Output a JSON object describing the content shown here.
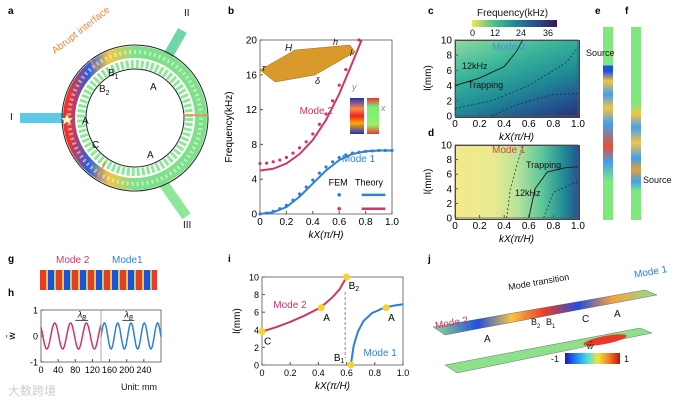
{
  "panels": {
    "a": "a",
    "b": "b",
    "c": "c",
    "d": "d",
    "e": "e",
    "f": "f",
    "g": "g",
    "h": "h",
    "i": "i",
    "j": "j"
  },
  "panel_a": {
    "interface_label": "Abrupt interface",
    "ports": [
      "I",
      "II",
      "III"
    ],
    "regions": [
      "A",
      "A",
      "A",
      "C"
    ],
    "b1": "B",
    "b1_sub": "1",
    "b2": "B",
    "b2_sub": "2"
  },
  "panel_c": {
    "colorbar_title": "Frequency(kHz)",
    "colorbar_ticks": [
      "0",
      "12",
      "24",
      "36"
    ],
    "mode_label": "Mode 2",
    "contour_label": "12kHz",
    "trapping_label": "Trapping"
  },
  "panel_d": {
    "mode_label": "Mode 1",
    "contour_label": "12kHz",
    "trapping_label": "Trapping"
  },
  "panel_e": {
    "source_label": "Source"
  },
  "panel_f": {
    "source_label": "Source"
  },
  "panel_g": {
    "mode2": "Mode 2",
    "mode1": "Mode1"
  },
  "panel_j": {
    "mode2": "Mode 2",
    "mode1": "Mode 1",
    "transition": "Mode transition",
    "a1": "A",
    "a2": "A",
    "c": "C",
    "b2": "B",
    "b2_sub": "2",
    "b1": "B",
    "b1_sub": "1",
    "colorbar_label": "w̄",
    "cb_min": "-1",
    "cb_max": "1"
  },
  "watermark": "大数跨境",
  "colors": {
    "mode1": "#2f7fd8",
    "mode2": "#d0356a",
    "highlight": "#f5d327",
    "interface": "#f08a3c"
  },
  "chart_data": [
    {
      "id": "b",
      "type": "line",
      "xlabel": "kX(π/H)",
      "ylabel": "Frequency(kHz)",
      "xlim": [
        0,
        1
      ],
      "ylim": [
        0,
        20
      ],
      "xticks": [
        "0",
        "0.2",
        "0.4",
        "0.6",
        "0.8",
        "1.0"
      ],
      "yticks": [
        "0",
        "4",
        "8",
        "12",
        "16",
        "20"
      ],
      "legend": {
        "fem": "FEM",
        "theory": "Theory",
        "placement": "bottom-right"
      },
      "labels": {
        "mode1": "Mode 1",
        "mode2": "Mode 2",
        "H": "H",
        "h": "h",
        "l": "l",
        "tau": "τ",
        "delta": "δ",
        "x": "x",
        "y": "y"
      },
      "series": [
        {
          "name": "Mode 2 Theory",
          "kind": "line",
          "x": [
            0,
            0.1,
            0.2,
            0.3,
            0.4,
            0.5,
            0.6,
            0.7,
            0.77
          ],
          "y": [
            5,
            5.2,
            5.8,
            6.9,
            8.5,
            10.8,
            13.8,
            17.4,
            20
          ]
        },
        {
          "name": "Mode 2 FEM",
          "kind": "points",
          "x": [
            0,
            0.05,
            0.1,
            0.15,
            0.2,
            0.25,
            0.3,
            0.35,
            0.4,
            0.45,
            0.5,
            0.55,
            0.6,
            0.65,
            0.7,
            0.75
          ],
          "y": [
            5.8,
            5.85,
            6,
            6.2,
            6.5,
            7,
            7.6,
            8.3,
            9.2,
            10.3,
            11.5,
            13,
            14.8,
            16.6,
            18.5,
            20
          ]
        },
        {
          "name": "Mode 1 Theory",
          "kind": "line",
          "x": [
            0,
            0.1,
            0.2,
            0.3,
            0.4,
            0.5,
            0.6,
            0.7,
            0.8,
            0.9,
            1.0
          ],
          "y": [
            0,
            0.2,
            0.8,
            2,
            3.5,
            5,
            6.2,
            6.9,
            7.2,
            7.3,
            7.3
          ]
        },
        {
          "name": "Mode 1 FEM",
          "kind": "points",
          "x": [
            0,
            0.05,
            0.1,
            0.15,
            0.2,
            0.25,
            0.3,
            0.35,
            0.4,
            0.45,
            0.5,
            0.55,
            0.6,
            0.65,
            0.7,
            0.75,
            0.8,
            0.85,
            0.9,
            0.95,
            1.0
          ],
          "y": [
            0,
            0.1,
            0.3,
            0.6,
            1,
            1.6,
            2.3,
            3.1,
            3.9,
            4.7,
            5.4,
            6,
            6.5,
            6.8,
            7,
            7.1,
            7.2,
            7.25,
            7.3,
            7.3,
            7.3
          ]
        }
      ]
    },
    {
      "id": "c",
      "type": "heatmap",
      "xlabel": "kX(π/H)",
      "ylabel": "l(mm)",
      "xlim": [
        0,
        1
      ],
      "ylim": [
        0,
        10
      ],
      "xticks": [
        "0",
        "0.2",
        "0.4",
        "0.6",
        "0.8",
        "1.0"
      ],
      "yticks": [
        "0",
        "2",
        "4",
        "6",
        "8",
        "10"
      ],
      "colorbar_range_khz": [
        0,
        36
      ]
    },
    {
      "id": "d",
      "type": "heatmap",
      "xlabel": "kX(π/H)",
      "ylabel": "l(mm)",
      "xlim": [
        0,
        1
      ],
      "ylim": [
        0,
        10
      ],
      "xticks": [
        "0",
        "0.2",
        "0.4",
        "0.6",
        "0.8",
        "1.0"
      ],
      "yticks": [
        "0",
        "2",
        "4",
        "6",
        "8",
        "10"
      ],
      "colorbar_range_khz": [
        0,
        36
      ]
    },
    {
      "id": "h",
      "type": "line",
      "xlabel": "",
      "ylabel": "w̄",
      "unit_label": "Unit: mm",
      "xlim": [
        0,
        280
      ],
      "ylim": [
        -1,
        1
      ],
      "xticks": [
        "0",
        "40",
        "80",
        "120",
        "160",
        "200",
        "240"
      ],
      "yticks": [
        "-1",
        "0",
        "1"
      ],
      "lambda_label": "λ",
      "lambda_sub": "B",
      "series": [
        {
          "name": "Mode 2",
          "x_range": [
            0,
            140
          ],
          "amplitude": 0.5,
          "period_mm": 37
        },
        {
          "name": "Mode 1",
          "x_range": [
            140,
            280
          ],
          "amplitude": 0.5,
          "period_mm": 31
        }
      ]
    },
    {
      "id": "i",
      "type": "line",
      "xlabel": "kX(π/H)",
      "ylabel": "l(mm)",
      "xlim": [
        0,
        1
      ],
      "ylim": [
        0,
        10
      ],
      "xticks": [
        "0",
        "0.2",
        "0.4",
        "0.6",
        "0.8",
        "1.0"
      ],
      "yticks": [
        "0",
        "2",
        "4",
        "6",
        "8",
        "10"
      ],
      "series": [
        {
          "name": "Mode 2",
          "x": [
            0,
            0.1,
            0.2,
            0.3,
            0.4,
            0.45,
            0.5,
            0.55,
            0.6
          ],
          "y": [
            3.8,
            4.3,
            4.9,
            5.6,
            6.4,
            7,
            7.7,
            8.6,
            10
          ]
        },
        {
          "name": "Mode 1",
          "x": [
            0.63,
            0.65,
            0.68,
            0.72,
            0.78,
            0.85,
            0.92,
            1.0
          ],
          "y": [
            0,
            2.2,
            3.8,
            5,
            5.9,
            6.4,
            6.7,
            6.9
          ]
        }
      ],
      "points": [
        {
          "label": "C",
          "x": 0,
          "y": 3.8
        },
        {
          "label": "A",
          "x": 0.42,
          "y": 6.5
        },
        {
          "label": "B2",
          "x": 0.6,
          "y": 10
        },
        {
          "label": "B1",
          "x": 0.63,
          "y": 0
        },
        {
          "label": "A",
          "x": 0.88,
          "y": 6.5
        }
      ]
    }
  ]
}
